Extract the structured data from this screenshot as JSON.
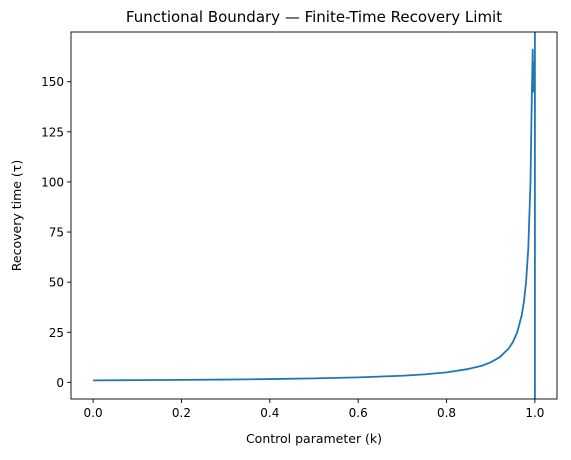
{
  "chart_data": {
    "type": "line",
    "title": "Functional Boundary — Finite-Time Recovery Limit",
    "xlabel": "Control parameter (k)",
    "ylabel": "Recovery time (τ)",
    "xlim": [
      -0.05,
      1.05
    ],
    "ylim": [
      -8.3,
      174.8
    ],
    "xticks": [
      0.0,
      0.2,
      0.4,
      0.6,
      0.8,
      1.0
    ],
    "xtick_labels": [
      "0.0",
      "0.2",
      "0.4",
      "0.6",
      "0.8",
      "1.0"
    ],
    "yticks": [
      0,
      25,
      50,
      75,
      100,
      125,
      150
    ],
    "ytick_labels": [
      "0",
      "25",
      "50",
      "75",
      "100",
      "125",
      "150"
    ],
    "grid": false,
    "legend": "none",
    "colors": {
      "line": "#1f77b4",
      "axes": "#000000",
      "background": "#ffffff"
    },
    "series": [
      {
        "x": [
          0.0,
          0.1,
          0.2,
          0.3,
          0.4,
          0.5,
          0.6,
          0.7,
          0.75,
          0.8,
          0.85,
          0.88,
          0.9,
          0.92,
          0.94,
          0.95,
          0.96,
          0.97,
          0.975,
          0.98,
          0.985,
          0.99,
          0.993,
          0.995,
          0.996,
          0.997
        ],
        "y": [
          1.0,
          1.1,
          1.25,
          1.4,
          1.65,
          2.0,
          2.5,
          3.3,
          4.0,
          5.0,
          6.7,
          8.3,
          10.0,
          12.5,
          16.7,
          20.0,
          25.0,
          33.3,
          40.0,
          50.0,
          66.7,
          100.0,
          142.9,
          166.0,
          145.0,
          160.0
        ]
      }
    ],
    "vlines": [
      1.0
    ]
  }
}
